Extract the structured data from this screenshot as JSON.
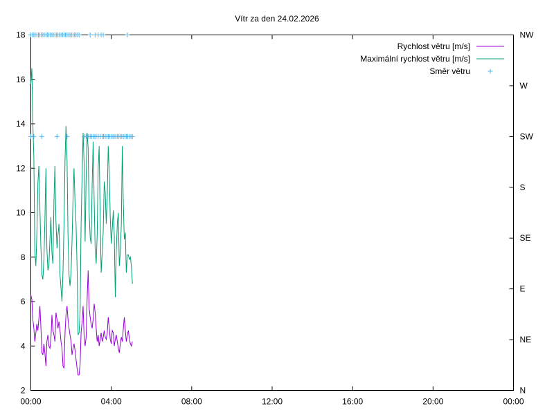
{
  "chart_data": {
    "type": "line",
    "title": "Vítr za den 24.02.2026",
    "x_ticks": [
      "00:00",
      "04:00",
      "08:00",
      "12:00",
      "16:00",
      "20:00",
      "00:00"
    ],
    "x_range_hours": [
      0,
      24
    ],
    "ylim": [
      2,
      18
    ],
    "y_ticks": [
      2,
      4,
      6,
      8,
      10,
      12,
      14,
      16,
      18
    ],
    "y2_ticks": [
      "N",
      "NE",
      "E",
      "SE",
      "S",
      "SW",
      "W",
      "NW"
    ],
    "y2_range": [
      0,
      7
    ],
    "legend_position": "top-right",
    "grid": false,
    "series": [
      {
        "name": "Rychlost větru [m/s]",
        "color": "#9400d3",
        "style": "line",
        "x": [
          0.0,
          0.05,
          0.1,
          0.15,
          0.2,
          0.25,
          0.3,
          0.35,
          0.4,
          0.45,
          0.5,
          0.55,
          0.6,
          0.65,
          0.7,
          0.75,
          0.8,
          0.85,
          0.9,
          0.95,
          1.0,
          1.05,
          1.1,
          1.15,
          1.2,
          1.25,
          1.3,
          1.35,
          1.4,
          1.45,
          1.5,
          1.55,
          1.6,
          1.65,
          1.7,
          1.75,
          1.8,
          1.85,
          1.9,
          1.95,
          2.0,
          2.05,
          2.1,
          2.15,
          2.2,
          2.25,
          2.3,
          2.35,
          2.4,
          2.45,
          2.5,
          2.55,
          2.6,
          2.65,
          2.7,
          2.75,
          2.8,
          2.85,
          2.9,
          2.95,
          3.0,
          3.05,
          3.1,
          3.15,
          3.2,
          3.25,
          3.3,
          3.35,
          3.4,
          3.45,
          3.5,
          3.55,
          3.6,
          3.65,
          3.7,
          3.75,
          3.8,
          3.85,
          3.9,
          3.95,
          4.0,
          4.05,
          4.1,
          4.15,
          4.2,
          4.25,
          4.3,
          4.35,
          4.4,
          4.45,
          4.5,
          4.55,
          4.6,
          4.65,
          4.7,
          4.75,
          4.8,
          4.85,
          4.9,
          4.95,
          5.0,
          5.05
        ],
        "values": [
          6.3,
          6.1,
          5.2,
          4.8,
          4.2,
          4.6,
          5.0,
          4.7,
          5.2,
          5.8,
          4.9,
          3.7,
          3.6,
          4.1,
          3.7,
          3.1,
          4.2,
          4.5,
          4.0,
          3.9,
          4.3,
          5.4,
          4.7,
          4.5,
          4.2,
          5.5,
          5.2,
          4.8,
          5.1,
          4.7,
          4.2,
          3.9,
          3.1,
          3.0,
          4.6,
          5.4,
          5.8,
          5.2,
          4.8,
          4.5,
          4.2,
          3.6,
          3.9,
          4.1,
          3.8,
          3.4,
          3.0,
          2.7,
          2.7,
          3.2,
          4.6,
          5.1,
          5.8,
          4.4,
          4.0,
          4.4,
          6.1,
          7.4,
          5.7,
          5.3,
          5.0,
          4.8,
          5.2,
          5.9,
          5.5,
          4.8,
          4.2,
          4.5,
          4.0,
          4.3,
          4.6,
          4.2,
          4.4,
          4.7,
          4.4,
          4.3,
          4.6,
          5.3,
          4.8,
          4.3,
          4.1,
          4.7,
          4.6,
          4.0,
          4.3,
          4.5,
          4.2,
          3.9,
          3.7,
          4.1,
          4.4,
          4.2,
          4.8,
          5.3,
          4.7,
          4.2,
          4.5,
          4.7,
          4.3,
          4.1,
          4.0,
          4.2
        ]
      },
      {
        "name": "Maximální rychlost větru [m/s]",
        "color": "#009e73",
        "style": "line",
        "x": [
          0.0,
          0.05,
          0.1,
          0.15,
          0.2,
          0.25,
          0.3,
          0.35,
          0.4,
          0.45,
          0.5,
          0.55,
          0.6,
          0.65,
          0.7,
          0.75,
          0.8,
          0.85,
          0.9,
          0.95,
          1.0,
          1.05,
          1.1,
          1.15,
          1.2,
          1.25,
          1.3,
          1.35,
          1.4,
          1.45,
          1.5,
          1.55,
          1.6,
          1.65,
          1.7,
          1.75,
          1.8,
          1.85,
          1.9,
          1.95,
          2.0,
          2.05,
          2.1,
          2.15,
          2.2,
          2.25,
          2.3,
          2.35,
          2.4,
          2.45,
          2.5,
          2.55,
          2.6,
          2.65,
          2.7,
          2.75,
          2.8,
          2.85,
          2.9,
          2.95,
          3.0,
          3.05,
          3.1,
          3.15,
          3.2,
          3.25,
          3.3,
          3.35,
          3.4,
          3.45,
          3.5,
          3.55,
          3.6,
          3.65,
          3.7,
          3.75,
          3.8,
          3.85,
          3.9,
          3.95,
          4.0,
          4.05,
          4.1,
          4.15,
          4.2,
          4.25,
          4.3,
          4.35,
          4.4,
          4.45,
          4.5,
          4.55,
          4.6,
          4.65,
          4.7,
          4.75,
          4.8,
          4.85,
          4.9,
          4.95,
          5.0,
          5.05
        ],
        "values": [
          15.8,
          16.5,
          14.0,
          12.5,
          8.2,
          7.6,
          9.0,
          11.3,
          12.1,
          10.2,
          8.5,
          7.2,
          7.0,
          7.9,
          9.6,
          12.0,
          8.4,
          7.4,
          7.6,
          8.8,
          9.8,
          8.2,
          7.7,
          10.5,
          12.1,
          9.6,
          8.4,
          9.0,
          9.5,
          7.2,
          6.6,
          6.0,
          7.4,
          9.4,
          12.4,
          13.9,
          12.4,
          9.0,
          7.2,
          6.7,
          7.3,
          8.7,
          10.7,
          12.0,
          10.4,
          9.5,
          7.6,
          4.5,
          4.6,
          5.6,
          9.5,
          11.7,
          13.6,
          12.2,
          8.7,
          11.6,
          13.6,
          12.9,
          10.0,
          8.9,
          8.6,
          11.3,
          13.2,
          10.5,
          8.4,
          7.7,
          9.0,
          12.0,
          13.0,
          9.7,
          7.3,
          8.2,
          9.2,
          11.4,
          10.9,
          9.5,
          10.7,
          13.0,
          11.8,
          9.8,
          8.6,
          9.3,
          10.1,
          9.0,
          6.2,
          8.3,
          9.5,
          10.0,
          7.6,
          8.2,
          9.5,
          13.0,
          10.4,
          8.8,
          9.1,
          7.3,
          8.1,
          8.1,
          7.9,
          8.0,
          7.6,
          6.8
        ]
      },
      {
        "name": "Směr větru",
        "color": "#56b4e9",
        "style": "points",
        "x": [
          0.0,
          0.08,
          0.15,
          0.22,
          0.3,
          0.38,
          0.45,
          0.52,
          0.6,
          0.67,
          0.75,
          0.82,
          0.9,
          0.97,
          1.05,
          1.12,
          1.2,
          1.28,
          1.35,
          1.42,
          1.5,
          1.58,
          1.65,
          1.72,
          1.8,
          1.88,
          1.95,
          2.02,
          2.1,
          2.18,
          2.25,
          2.32,
          2.4,
          2.95,
          3.2,
          3.35,
          3.5,
          3.6,
          4.8,
          0.0,
          0.15,
          0.55,
          1.3,
          1.8,
          2.65,
          2.75,
          2.85,
          2.95,
          3.02,
          3.1,
          3.18,
          3.25,
          3.35,
          3.45,
          3.55,
          3.62,
          3.7,
          3.78,
          3.85,
          3.92,
          4.0,
          4.08,
          4.15,
          4.22,
          4.3,
          4.38,
          4.45,
          4.52,
          4.6,
          4.68,
          4.75,
          4.82,
          4.9,
          4.98,
          5.05
        ],
        "values": [
          7,
          7,
          7,
          7,
          7,
          7,
          7,
          7,
          7,
          7,
          7,
          7,
          7,
          7,
          7,
          7,
          7,
          7,
          7,
          7,
          7,
          7,
          7,
          7,
          7,
          7,
          7,
          7,
          7,
          7,
          7,
          7,
          7,
          7,
          7,
          7,
          7,
          7,
          7,
          5,
          5,
          5,
          5,
          5,
          5,
          5,
          5,
          5,
          5,
          5,
          5,
          5,
          5,
          5,
          5,
          5,
          5,
          5,
          5,
          5,
          5,
          5,
          5,
          5,
          5,
          5,
          5,
          5,
          5,
          5,
          5,
          5,
          5,
          5,
          5
        ]
      }
    ]
  }
}
